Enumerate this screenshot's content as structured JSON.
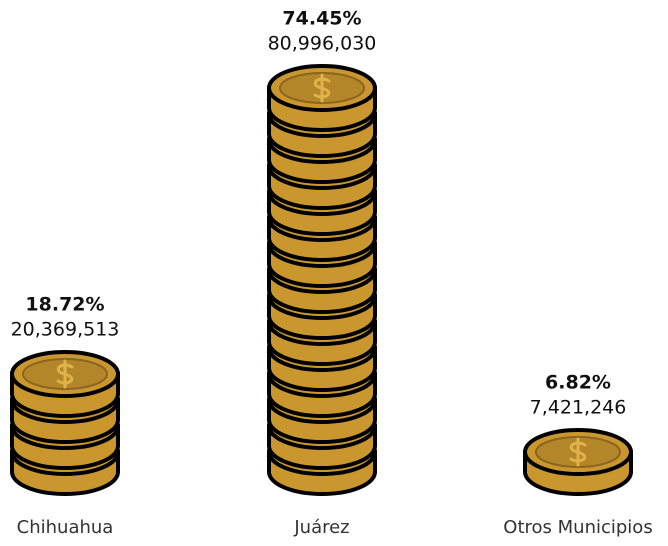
{
  "chart_data": {
    "type": "bar",
    "categories": [
      "Chihuahua",
      "Juárez",
      "Otros Municipios"
    ],
    "values": [
      20369513,
      80996030,
      7421246
    ],
    "value_labels": [
      "20,369,513",
      "80,996,030",
      "7,421,246"
    ],
    "shares": [
      18.72,
      74.45,
      6.82
    ],
    "share_labels": [
      "18.72%",
      "74.45%",
      "6.82%"
    ],
    "color": "#c9972e"
  }
}
